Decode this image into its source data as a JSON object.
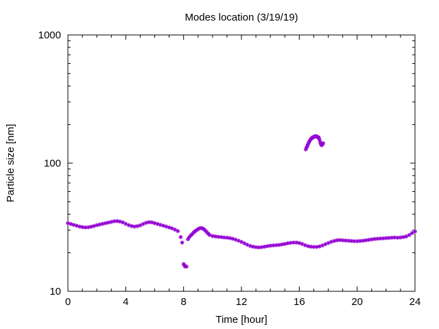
{
  "chart_data": {
    "type": "scatter",
    "title": "Modes location (3/19/19)",
    "xlabel": "Time [hour]",
    "ylabel": "Particle size [nm]",
    "xlim": [
      0,
      24
    ],
    "ylim": [
      10,
      1000
    ],
    "yscale": "log",
    "grid": false,
    "x_ticks": [
      0,
      4,
      8,
      12,
      16,
      20,
      24
    ],
    "x_tick_labels": [
      "0",
      "4",
      "8",
      "12",
      "16",
      "20",
      "24"
    ],
    "y_ticks": [
      10,
      100,
      1000
    ],
    "y_tick_labels": [
      "10",
      "100",
      "1000"
    ],
    "marker_color": "#9400d3",
    "marker": "asterisk",
    "series": [
      {
        "x": [
          0.0,
          0.2,
          0.4,
          0.6,
          0.8,
          1.0,
          1.2,
          1.4,
          1.6,
          1.8,
          2.0,
          2.2,
          2.4,
          2.6,
          2.8,
          3.0,
          3.2,
          3.4,
          3.6,
          3.8,
          4.0,
          4.2,
          4.4,
          4.6,
          4.8,
          5.0,
          5.2,
          5.4,
          5.6,
          5.8,
          6.0,
          6.2,
          6.4,
          6.6,
          6.8,
          7.0,
          7.2,
          7.4,
          7.6,
          7.8,
          7.9,
          8.0,
          8.05,
          8.1,
          8.2,
          8.3,
          8.4,
          8.5,
          8.6,
          8.7,
          8.8,
          8.9,
          9.0,
          9.1,
          9.2,
          9.3,
          9.4,
          9.5,
          9.6,
          9.7,
          9.8,
          10.0,
          10.2,
          10.4,
          10.6,
          10.8,
          11.0,
          11.2,
          11.4,
          11.6,
          11.8,
          12.0,
          12.2,
          12.4,
          12.6,
          12.8,
          13.0,
          13.2,
          13.4,
          13.6,
          13.8,
          14.0,
          14.2,
          14.4,
          14.6,
          14.8,
          15.0,
          15.2,
          15.4,
          15.6,
          15.8,
          16.0,
          16.2,
          16.4,
          16.6,
          16.8,
          17.0,
          17.2,
          17.4,
          17.6,
          17.8,
          18.0,
          18.2,
          18.4,
          18.6,
          18.8,
          19.0,
          19.2,
          19.4,
          19.6,
          19.8,
          20.0,
          20.2,
          20.4,
          20.6,
          20.8,
          21.0,
          21.2,
          21.4,
          21.6,
          21.8,
          22.0,
          22.2,
          22.4,
          22.6,
          22.8,
          23.0,
          23.2,
          23.4,
          23.6,
          23.8,
          24.0
        ],
        "y": [
          34,
          33.5,
          33,
          32.5,
          32,
          31.7,
          31.5,
          31.6,
          31.9,
          32.3,
          32.8,
          33.2,
          33.6,
          34.0,
          34.4,
          34.8,
          35.2,
          35.3,
          35.0,
          34.5,
          33.6,
          32.8,
          32.3,
          32.0,
          32.2,
          32.7,
          33.5,
          34.2,
          34.6,
          34.5,
          34.0,
          33.5,
          33.0,
          32.5,
          32.0,
          31.5,
          31.0,
          30.3,
          29.5,
          26.5,
          24.0,
          16.3,
          16.0,
          15.6,
          15.6,
          25.5,
          26.5,
          27.3,
          28.0,
          28.8,
          29.5,
          30.0,
          30.5,
          31.0,
          31.2,
          31.0,
          30.5,
          29.8,
          29.0,
          28.2,
          27.5,
          27.0,
          26.8,
          26.6,
          26.5,
          26.3,
          26.2,
          26.0,
          25.7,
          25.3,
          24.8,
          24.3,
          23.7,
          23.1,
          22.6,
          22.3,
          22.1,
          22.0,
          22.1,
          22.3,
          22.5,
          22.7,
          22.8,
          22.9,
          23.0,
          23.2,
          23.4,
          23.7,
          23.9,
          24.0,
          24.0,
          23.8,
          23.4,
          22.9,
          22.5,
          22.3,
          22.2,
          22.2,
          22.4,
          22.8,
          23.3,
          23.8,
          24.3,
          24.7,
          25.0,
          25.1,
          25.0,
          24.9,
          24.8,
          24.7,
          24.6,
          24.6,
          24.7,
          24.8,
          25.0,
          25.2,
          25.4,
          25.6,
          25.7,
          25.8,
          25.9,
          26.0,
          26.1,
          26.2,
          26.3,
          26.2,
          26.3,
          26.5,
          26.8,
          27.5,
          28.5,
          29.3
        ]
      },
      {
        "x": [
          16.45,
          16.5,
          16.55,
          16.6,
          16.65,
          16.7,
          16.75,
          16.8,
          16.85,
          16.9,
          16.95,
          17.0,
          17.05,
          17.1,
          17.15,
          17.2,
          17.25,
          17.3,
          17.35,
          17.4,
          17.45,
          17.5,
          17.55,
          17.6,
          17.65
        ],
        "y": [
          128,
          132,
          136,
          140,
          144,
          148,
          151,
          154,
          156,
          158,
          159,
          160,
          161,
          162,
          162,
          161,
          160,
          159,
          158,
          152,
          145,
          140,
          138,
          140,
          143
        ]
      }
    ]
  }
}
